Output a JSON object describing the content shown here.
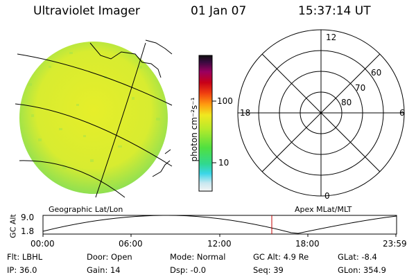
{
  "header": {
    "instrument": "Ultraviolet Imager",
    "date": "01 Jan 07",
    "time": "15:37:14 UT"
  },
  "colorbar": {
    "ticks": [
      "100",
      "10"
    ],
    "unit": "photon cm⁻²s⁻¹"
  },
  "polar": {
    "mlt_labels": {
      "top": "12",
      "bottom": "0",
      "left": "18",
      "right": "6"
    },
    "lat_labels": [
      "60",
      "70",
      "80"
    ]
  },
  "panels": {
    "left_label": "Geographic Lat/Lon",
    "right_label": "Apex MLat/MLT"
  },
  "altitude_plot": {
    "ylabel": "GC Alt",
    "ymax": "9.0",
    "ymin": "1.8",
    "xticks": [
      "00:00",
      "06:00",
      "12:00",
      "18:00",
      "23:59"
    ],
    "current_time_marker": "15:37"
  },
  "info": {
    "flt": "Flt: LBHL",
    "ip": "IP: 36.0",
    "door": "Door: Open",
    "gain": "Gain: 14",
    "mode": "Mode: Normal",
    "dsp": "Dsp:   -0.0",
    "gcalt": "GC Alt: 4.9 Re",
    "seq": "Seq: 39",
    "glat": "GLat:   -8.4",
    "glon": "GLon: 354.9"
  },
  "colors": {
    "disk_fill": "#d9ec2e",
    "disk_edge": "#7fe05a",
    "marker_line": "#c00000"
  }
}
